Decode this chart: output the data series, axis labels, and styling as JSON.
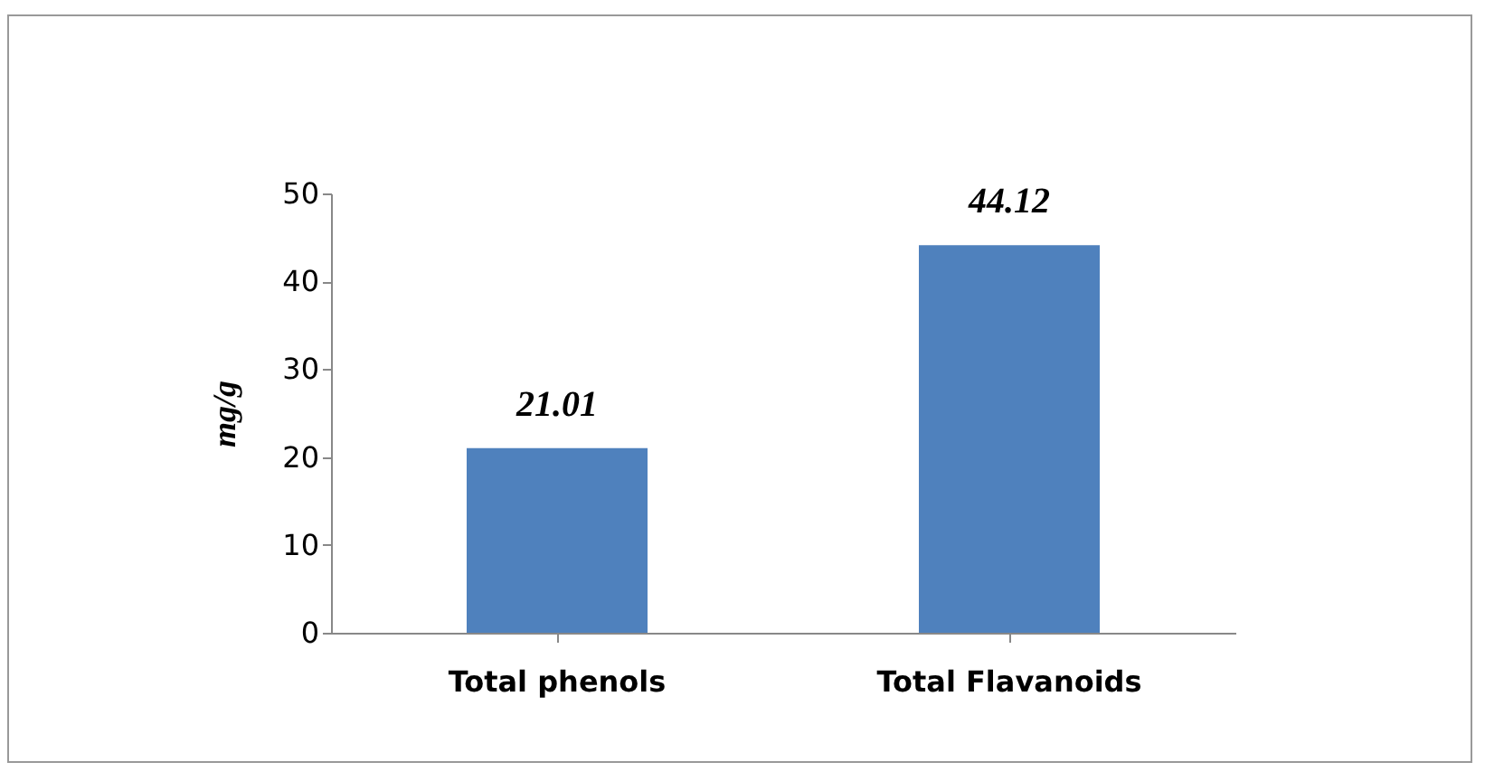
{
  "chart_data": {
    "type": "bar",
    "ylabel": "mg/g",
    "categories": [
      "Total phenols",
      "Total Flavanoids"
    ],
    "values": [
      21.01,
      44.12
    ],
    "color": "#4f81bd",
    "ylim": [
      0,
      50
    ],
    "yticks": [
      0,
      10,
      20,
      30,
      40,
      50
    ],
    "grid": false,
    "data_labels": true
  }
}
